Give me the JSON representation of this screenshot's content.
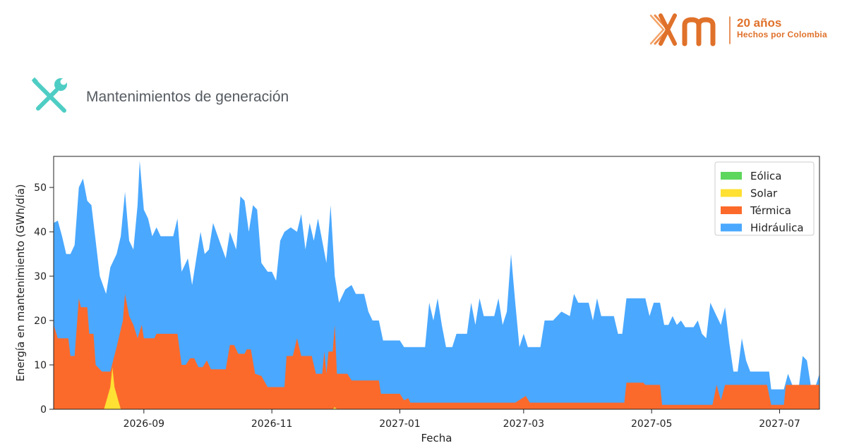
{
  "branding": {
    "year_text": "20 años",
    "tagline": "Hechos por Colombia",
    "color": "#e0712a"
  },
  "section": {
    "title": "Mantenimientos de generación",
    "icon": "tools-icon",
    "icon_color": "#4ecdc4"
  },
  "chart_data": {
    "type": "area",
    "stacked": true,
    "xlabel": "Fecha",
    "ylabel": "Energía en mantenimiento (GWh/día)",
    "xlim": [
      "2026-07-20",
      "2027-07-20"
    ],
    "ylim": [
      0,
      57
    ],
    "xticks": [
      "2026-09",
      "2026-11",
      "2027-01",
      "2027-03",
      "2027-05",
      "2027-07"
    ],
    "yticks": [
      0,
      10,
      20,
      30,
      40,
      50
    ],
    "grid": false,
    "legend_position": "top-right",
    "series": [
      {
        "name": "Eólica",
        "color": "#5cd65c",
        "points": [
          [
            "2026-07-20",
            0
          ],
          [
            "2027-07-20",
            0
          ]
        ]
      },
      {
        "name": "Solar",
        "color": "#ffe033",
        "points": [
          [
            "2026-07-20",
            0
          ],
          [
            "2026-08-13",
            0
          ],
          [
            "2026-08-16",
            5
          ],
          [
            "2026-08-17",
            9.5
          ],
          [
            "2026-08-18",
            5
          ],
          [
            "2026-08-21",
            0
          ],
          [
            "2026-11-30",
            0
          ],
          [
            "2026-12-01",
            0.5
          ],
          [
            "2026-12-02",
            0
          ],
          [
            "2027-07-20",
            0
          ]
        ]
      },
      {
        "name": "Térmica",
        "color": "#fc6a2b",
        "points": [
          [
            "2026-07-20",
            19
          ],
          [
            "2026-07-22",
            16
          ],
          [
            "2026-07-27",
            16
          ],
          [
            "2026-07-28",
            12
          ],
          [
            "2026-07-30",
            12
          ],
          [
            "2026-08-01",
            25
          ],
          [
            "2026-08-02",
            23
          ],
          [
            "2026-08-05",
            23
          ],
          [
            "2026-08-06",
            17
          ],
          [
            "2026-08-08",
            17
          ],
          [
            "2026-08-09",
            10
          ],
          [
            "2026-08-12",
            8.5
          ],
          [
            "2026-08-16",
            8.5
          ],
          [
            "2026-08-19",
            14
          ],
          [
            "2026-08-22",
            20
          ],
          [
            "2026-08-23",
            26
          ],
          [
            "2026-08-25",
            21
          ],
          [
            "2026-08-27",
            19
          ],
          [
            "2026-08-29",
            16
          ],
          [
            "2026-08-31",
            19
          ],
          [
            "2026-09-01",
            16
          ],
          [
            "2026-09-06",
            16
          ],
          [
            "2026-09-07",
            17
          ],
          [
            "2026-09-17",
            17
          ],
          [
            "2026-09-19",
            10
          ],
          [
            "2026-09-21",
            10
          ],
          [
            "2026-09-23",
            11.5
          ],
          [
            "2026-09-25",
            11.5
          ],
          [
            "2026-09-27",
            9.5
          ],
          [
            "2026-09-29",
            9.5
          ],
          [
            "2026-10-01",
            11
          ],
          [
            "2026-10-03",
            9
          ],
          [
            "2026-10-10",
            9
          ],
          [
            "2026-10-12",
            14.5
          ],
          [
            "2026-10-14",
            14.5
          ],
          [
            "2026-10-16",
            12.5
          ],
          [
            "2026-10-19",
            12.5
          ],
          [
            "2026-10-20",
            13.5
          ],
          [
            "2026-10-22",
            13.5
          ],
          [
            "2026-10-24",
            8
          ],
          [
            "2026-10-27",
            7.5
          ],
          [
            "2026-10-30",
            5
          ],
          [
            "2026-11-07",
            5
          ],
          [
            "2026-11-08",
            12
          ],
          [
            "2026-11-11",
            12
          ],
          [
            "2026-11-13",
            16
          ],
          [
            "2026-11-15",
            12
          ],
          [
            "2026-11-20",
            12
          ],
          [
            "2026-11-22",
            8
          ],
          [
            "2026-11-25",
            8
          ],
          [
            "2026-11-26",
            13
          ],
          [
            "2026-11-27",
            8
          ],
          [
            "2026-11-28",
            13
          ],
          [
            "2026-11-30",
            13
          ],
          [
            "2026-12-01",
            19
          ],
          [
            "2026-12-02",
            8
          ],
          [
            "2026-12-07",
            8
          ],
          [
            "2026-12-09",
            6.5
          ],
          [
            "2026-12-22",
            6.5
          ],
          [
            "2026-12-23",
            3.5
          ],
          [
            "2027-01-01",
            3.5
          ],
          [
            "2027-01-03",
            2
          ],
          [
            "2027-01-05",
            2.5
          ],
          [
            "2027-01-06",
            1.5
          ],
          [
            "2027-02-25",
            1.5
          ],
          [
            "2027-03-02",
            3
          ],
          [
            "2027-03-04",
            1.5
          ],
          [
            "2027-04-18",
            1.5
          ],
          [
            "2027-04-19",
            6
          ],
          [
            "2027-04-27",
            6
          ],
          [
            "2027-04-28",
            5.5
          ],
          [
            "2027-05-05",
            5.5
          ],
          [
            "2027-05-06",
            1
          ],
          [
            "2027-05-30",
            1
          ],
          [
            "2027-06-01",
            5.5
          ],
          [
            "2027-06-03",
            2
          ],
          [
            "2027-06-05",
            5.5
          ],
          [
            "2027-06-25",
            5.5
          ],
          [
            "2027-06-27",
            1
          ],
          [
            "2027-07-03",
            1
          ],
          [
            "2027-07-04",
            5.5
          ],
          [
            "2027-07-20",
            5.5
          ]
        ]
      },
      {
        "name": "Hidráulica",
        "color": "#4aa8ff",
        "points": [
          [
            "2026-07-20",
            42
          ],
          [
            "2026-07-22",
            42.5
          ],
          [
            "2026-07-24",
            39
          ],
          [
            "2026-07-26",
            35
          ],
          [
            "2026-07-28",
            35
          ],
          [
            "2026-07-30",
            37
          ],
          [
            "2026-08-01",
            50
          ],
          [
            "2026-08-03",
            52
          ],
          [
            "2026-08-05",
            47
          ],
          [
            "2026-08-07",
            46
          ],
          [
            "2026-08-09",
            38
          ],
          [
            "2026-08-11",
            30
          ],
          [
            "2026-08-14",
            26
          ],
          [
            "2026-08-16",
            32
          ],
          [
            "2026-08-19",
            35
          ],
          [
            "2026-08-21",
            39
          ],
          [
            "2026-08-23",
            49
          ],
          [
            "2026-08-25",
            38
          ],
          [
            "2026-08-27",
            36
          ],
          [
            "2026-08-29",
            46
          ],
          [
            "2026-08-30",
            56
          ],
          [
            "2026-09-01",
            45
          ],
          [
            "2026-09-03",
            43
          ],
          [
            "2026-09-05",
            39
          ],
          [
            "2026-09-07",
            41
          ],
          [
            "2026-09-09",
            39
          ],
          [
            "2026-09-15",
            39
          ],
          [
            "2026-09-17",
            43
          ],
          [
            "2026-09-19",
            31
          ],
          [
            "2026-09-22",
            34
          ],
          [
            "2026-09-24",
            28
          ],
          [
            "2026-09-26",
            34
          ],
          [
            "2026-09-28",
            40
          ],
          [
            "2026-09-30",
            35
          ],
          [
            "2026-10-02",
            36
          ],
          [
            "2026-10-04",
            42
          ],
          [
            "2026-10-07",
            38
          ],
          [
            "2026-10-10",
            34
          ],
          [
            "2026-10-12",
            40
          ],
          [
            "2026-10-15",
            36
          ],
          [
            "2026-10-17",
            48
          ],
          [
            "2026-10-19",
            47
          ],
          [
            "2026-10-21",
            40
          ],
          [
            "2026-10-23",
            46
          ],
          [
            "2026-10-25",
            45
          ],
          [
            "2026-10-27",
            33
          ],
          [
            "2026-10-30",
            31
          ],
          [
            "2026-11-01",
            31
          ],
          [
            "2026-11-03",
            29
          ],
          [
            "2026-11-05",
            38
          ],
          [
            "2026-11-07",
            40
          ],
          [
            "2026-11-10",
            41
          ],
          [
            "2026-11-13",
            40
          ],
          [
            "2026-11-15",
            44
          ],
          [
            "2026-11-17",
            36
          ],
          [
            "2026-11-19",
            42
          ],
          [
            "2026-11-21",
            38
          ],
          [
            "2026-11-23",
            43
          ],
          [
            "2026-11-25",
            38
          ],
          [
            "2026-11-27",
            33
          ],
          [
            "2026-11-29",
            46
          ],
          [
            "2026-12-01",
            30
          ],
          [
            "2026-12-03",
            24
          ],
          [
            "2026-12-06",
            27
          ],
          [
            "2026-12-09",
            28
          ],
          [
            "2026-12-11",
            26
          ],
          [
            "2026-12-15",
            26
          ],
          [
            "2026-12-17",
            22
          ],
          [
            "2026-12-19",
            20
          ],
          [
            "2026-12-22",
            20
          ],
          [
            "2026-12-24",
            15.5
          ],
          [
            "2027-01-01",
            15.5
          ],
          [
            "2027-01-03",
            14
          ],
          [
            "2027-01-06",
            14
          ],
          [
            "2027-01-09",
            14
          ],
          [
            "2027-01-13",
            14
          ],
          [
            "2027-01-15",
            24
          ],
          [
            "2027-01-17",
            20
          ],
          [
            "2027-01-19",
            25
          ],
          [
            "2027-01-21",
            19
          ],
          [
            "2027-01-23",
            14
          ],
          [
            "2027-01-26",
            14
          ],
          [
            "2027-01-28",
            17
          ],
          [
            "2027-02-02",
            17
          ],
          [
            "2027-02-04",
            24
          ],
          [
            "2027-02-06",
            19
          ],
          [
            "2027-02-08",
            25
          ],
          [
            "2027-02-10",
            21
          ],
          [
            "2027-02-15",
            21
          ],
          [
            "2027-02-17",
            25
          ],
          [
            "2027-02-19",
            19
          ],
          [
            "2027-02-21",
            22
          ],
          [
            "2027-02-23",
            35
          ],
          [
            "2027-02-25",
            24
          ],
          [
            "2027-02-27",
            14
          ],
          [
            "2027-03-01",
            17
          ],
          [
            "2027-03-03",
            14
          ],
          [
            "2027-03-09",
            14
          ],
          [
            "2027-03-11",
            20
          ],
          [
            "2027-03-15",
            20
          ],
          [
            "2027-03-17",
            21
          ],
          [
            "2027-03-19",
            22
          ],
          [
            "2027-03-23",
            21
          ],
          [
            "2027-03-25",
            26
          ],
          [
            "2027-03-27",
            24
          ],
          [
            "2027-04-01",
            24
          ],
          [
            "2027-04-03",
            20
          ],
          [
            "2027-04-05",
            25
          ],
          [
            "2027-04-07",
            21
          ],
          [
            "2027-04-13",
            21
          ],
          [
            "2027-04-15",
            17
          ],
          [
            "2027-04-17",
            17
          ],
          [
            "2027-04-19",
            25
          ],
          [
            "2027-04-28",
            25
          ],
          [
            "2027-04-30",
            21
          ],
          [
            "2027-05-02",
            24
          ],
          [
            "2027-05-05",
            24
          ],
          [
            "2027-05-07",
            19
          ],
          [
            "2027-05-09",
            19
          ],
          [
            "2027-05-11",
            21
          ],
          [
            "2027-05-13",
            19
          ],
          [
            "2027-05-15",
            20
          ],
          [
            "2027-05-17",
            18.5
          ],
          [
            "2027-05-21",
            18.5
          ],
          [
            "2027-05-23",
            20
          ],
          [
            "2027-05-25",
            17
          ],
          [
            "2027-05-27",
            16
          ],
          [
            "2027-05-29",
            24
          ],
          [
            "2027-06-01",
            21
          ],
          [
            "2027-06-03",
            19
          ],
          [
            "2027-06-05",
            23
          ],
          [
            "2027-06-07",
            15
          ],
          [
            "2027-06-09",
            8.5
          ],
          [
            "2027-06-11",
            8.5
          ],
          [
            "2027-06-13",
            16
          ],
          [
            "2027-06-15",
            11
          ],
          [
            "2027-06-17",
            8.5
          ],
          [
            "2027-06-26",
            8.5
          ],
          [
            "2027-06-27",
            4.5
          ],
          [
            "2027-07-03",
            4.5
          ],
          [
            "2027-07-05",
            8
          ],
          [
            "2027-07-07",
            5.5
          ],
          [
            "2027-07-10",
            4.5
          ],
          [
            "2027-07-12",
            12
          ],
          [
            "2027-07-14",
            11
          ],
          [
            "2027-07-16",
            5
          ],
          [
            "2027-07-18",
            5
          ],
          [
            "2027-07-20",
            8
          ]
        ]
      }
    ]
  }
}
